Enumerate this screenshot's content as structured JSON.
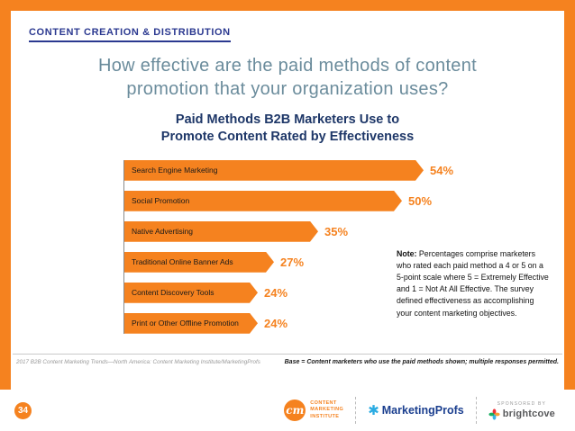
{
  "slide": {
    "eyebrow": "CONTENT CREATION & DISTRIBUTION",
    "question_line1": "How effective are the paid methods of content",
    "question_line2": "promotion that your organization uses?"
  },
  "chart_data": {
    "type": "bar",
    "orientation": "horizontal",
    "title": "Paid Methods B2B Marketers Use to Promote Content Rated by Effectiveness",
    "title_line1": "Paid Methods B2B Marketers Use to",
    "title_line2": "Promote Content Rated by Effectiveness",
    "categories": [
      "Search Engine Marketing",
      "Social Promotion",
      "Native Advertising",
      "Traditional Online Banner Ads",
      "Content Discovery Tools",
      "Print or Other Offline Promotion"
    ],
    "values": [
      54,
      50,
      35,
      27,
      24,
      24
    ],
    "value_suffix": "%",
    "xlim": [
      0,
      60
    ],
    "grid": false,
    "legend": false,
    "bar_color": "#F5821F",
    "value_label_color": "#F5821F"
  },
  "note": {
    "label": "Note:",
    "text": " Percentages comprise marketers who rated each paid method a 4 or 5 on a 5-point scale where 5 = Extremely Effective and 1 = Not At All Effective. The survey defined effectiveness as accomplishing your content marketing objectives."
  },
  "footnotes": {
    "source": "2017 B2B Content Marketing Trends—North America: Content Marketing Institute/MarketingProfs",
    "base": "Base = Content marketers who use the paid methods shown; multiple responses permitted."
  },
  "footer": {
    "page_number": "34",
    "cmi_logo": {
      "script": "cm",
      "line1": "CONTENT",
      "line2": "MARKETING",
      "line3": "INSTITUTE"
    },
    "marketingprofs_label": "MarketingProfs",
    "sponsored_by": "SPONSORED BY",
    "brightcove_label": "brightcove"
  },
  "icons": {
    "marketingprofs_star": "✱"
  },
  "colors": {
    "accent_orange": "#F5821F",
    "navy": "#1E3768",
    "header_blue": "#2B3990",
    "question_gray": "#6B8C9C"
  }
}
